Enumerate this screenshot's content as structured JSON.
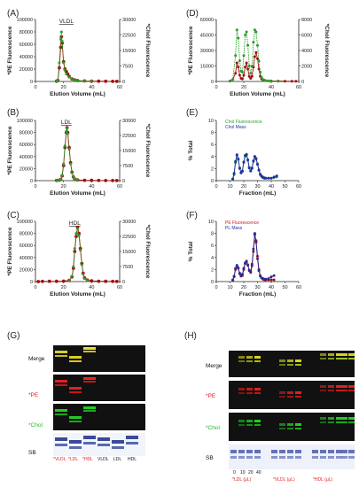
{
  "panel_labels": {
    "A": "(A)",
    "B": "(B)",
    "C": "(C)",
    "D": "(D)",
    "E": "(E)",
    "F": "(F)",
    "G": "(G)",
    "H": "(H)"
  },
  "colors": {
    "pe": "#a01010",
    "chol": "#2a9d2a",
    "chol_mass": "#1f2fa6",
    "pl_mass": "#2a2a9a",
    "pe_legend_text": "#c02020",
    "chol_legend_text": "#2a9d2a",
    "mass_legend_text": "#1f2fa6",
    "red_text": "#e02020",
    "green_text": "#22bb22"
  },
  "chart_data": [
    {
      "panel": "A",
      "type": "line",
      "title": "VLDL",
      "xlabel": "Elution Volume (mL)",
      "ylabel": "*PE Fluorescence",
      "y2label": "*Chol Fluorescence",
      "xlim": [
        0,
        60
      ],
      "xticks": [
        "0",
        "20",
        "40",
        "60"
      ],
      "ylim": [
        0,
        100000
      ],
      "yticks": [
        "0",
        "20000",
        "40000",
        "60000",
        "80000",
        "100000"
      ],
      "y2lim": [
        0,
        30000
      ],
      "y2ticks": [
        "0",
        "7500",
        "15000",
        "22500",
        "30000"
      ],
      "series": [
        {
          "name": "PE",
          "x": [
            15,
            16,
            17,
            18,
            18.5,
            19,
            20,
            21,
            22,
            23,
            24,
            26,
            28,
            30,
            35,
            40,
            45,
            50,
            55,
            58
          ],
          "values": [
            500,
            2000,
            22000,
            55000,
            72000,
            62000,
            32000,
            20000,
            16000,
            12000,
            8000,
            4000,
            2500,
            1500,
            800,
            500,
            400,
            300,
            200,
            200
          ]
        },
        {
          "name": "Chol",
          "x": [
            15,
            16,
            17,
            18,
            18.5,
            19,
            20,
            21,
            22,
            24,
            26,
            28,
            30,
            35,
            40
          ],
          "values": [
            500,
            2500,
            30000,
            68000,
            80000,
            65000,
            30000,
            18000,
            12000,
            7000,
            4000,
            2000,
            1200,
            600,
            300
          ]
        }
      ]
    },
    {
      "panel": "B",
      "type": "line",
      "title": "LDL",
      "xlabel": "Elution Volume (mL)",
      "ylabel": "*PE Fluorescence",
      "y2label": "*Chol Fluorescence",
      "xlim": [
        0,
        60
      ],
      "xticks": [
        "0",
        "20",
        "40",
        "60"
      ],
      "ylim": [
        0,
        100000
      ],
      "yticks": [
        "0",
        "20000",
        "40000",
        "60000",
        "80000",
        "100000"
      ],
      "y2lim": [
        0,
        30000
      ],
      "y2ticks": [
        "0",
        "7500",
        "15000",
        "22500",
        "30000"
      ],
      "series": [
        {
          "name": "PE",
          "x": [
            15,
            17,
            18,
            19,
            20,
            21,
            22,
            22.5,
            23,
            24,
            25,
            26,
            27,
            28,
            30,
            35,
            40,
            45,
            50,
            55,
            58
          ],
          "values": [
            300,
            800,
            2000,
            8000,
            25000,
            55000,
            80000,
            88000,
            80000,
            55000,
            30000,
            14000,
            6000,
            2500,
            1200,
            600,
            400,
            300,
            200,
            200,
            200
          ]
        },
        {
          "name": "Chol",
          "x": [
            15,
            17,
            18,
            19,
            20,
            21,
            22,
            22.5,
            23,
            24,
            25,
            26,
            27,
            28,
            30
          ],
          "values": [
            300,
            800,
            2000,
            9000,
            28000,
            58000,
            82000,
            87000,
            78000,
            52000,
            28000,
            13000,
            5500,
            2300,
            1000
          ]
        }
      ]
    },
    {
      "panel": "C",
      "type": "line",
      "title": "HDL",
      "xlabel": "Elution Volume (mL)",
      "ylabel": "*PE Fluorescence",
      "y2label": "*Chol Fluorescence",
      "xlim": [
        0,
        60
      ],
      "xticks": [
        "0",
        "20",
        "40",
        "60"
      ],
      "ylim": [
        0,
        100000
      ],
      "yticks": [
        "0",
        "20000",
        "40000",
        "60000",
        "80000",
        "100000"
      ],
      "y2lim": [
        0,
        30000
      ],
      "y2ticks": [
        "0",
        "7500",
        "15000",
        "22500",
        "30000"
      ],
      "series": [
        {
          "name": "PE",
          "x": [
            2,
            5,
            10,
            15,
            20,
            24,
            26,
            27,
            28,
            29,
            30,
            31,
            32,
            33,
            34,
            35,
            37,
            40,
            45,
            50,
            55,
            58
          ],
          "values": [
            0,
            300,
            400,
            500,
            800,
            2000,
            8000,
            22000,
            50000,
            75000,
            90000,
            80000,
            55000,
            30000,
            14000,
            6000,
            2500,
            1200,
            600,
            400,
            300,
            200
          ]
        },
        {
          "name": "Chol",
          "x": [
            24,
            26,
            27,
            28,
            29,
            30,
            31,
            32,
            33,
            34,
            35,
            37
          ],
          "values": [
            2000,
            9000,
            25000,
            55000,
            80000,
            88000,
            76000,
            52000,
            28000,
            12000,
            5000,
            2000
          ]
        }
      ]
    },
    {
      "panel": "D",
      "type": "line",
      "xlabel": "Elution Volume (mL)",
      "ylabel": "*PE Fluorescence",
      "y2label": "*Chol Fluorescence",
      "xlim": [
        0,
        60
      ],
      "xticks": [
        "0",
        "20",
        "40",
        "60"
      ],
      "ylim": [
        0,
        60000
      ],
      "yticks": [
        "0",
        "15000",
        "30000",
        "45000",
        "60000"
      ],
      "y2lim": [
        0,
        8000
      ],
      "y2ticks": [
        "0",
        "2000",
        "4000",
        "6000",
        "8000"
      ],
      "series": [
        {
          "name": "PE",
          "x": [
            10,
            12,
            14,
            15,
            16,
            17,
            18,
            19,
            20,
            21,
            22,
            23,
            24,
            25,
            26,
            27,
            28,
            29,
            30,
            31,
            32,
            33,
            34,
            35,
            36,
            38,
            40,
            45,
            50,
            55,
            58
          ],
          "values": [
            500,
            2000,
            8000,
            18000,
            14000,
            6000,
            3000,
            2500,
            6000,
            14000,
            18000,
            12000,
            5000,
            3000,
            5000,
            14000,
            24000,
            28000,
            22000,
            12000,
            5000,
            2500,
            1500,
            1000,
            800,
            600,
            500,
            400,
            300,
            200,
            200
          ]
        },
        {
          "name": "Chol",
          "x": [
            10,
            12,
            14,
            15,
            16,
            17,
            18,
            19,
            20,
            21,
            22,
            23,
            24,
            25,
            26,
            27,
            28,
            29,
            30,
            31,
            32,
            33,
            34,
            35,
            36,
            38,
            40,
            45
          ],
          "values": [
            300,
            2000,
            25000,
            50000,
            42000,
            20000,
            10000,
            9000,
            25000,
            45000,
            48000,
            35000,
            15000,
            8000,
            15000,
            38000,
            50000,
            48000,
            35000,
            20000,
            9000,
            4000,
            2000,
            1200,
            800,
            500,
            300,
            200
          ]
        }
      ]
    },
    {
      "panel": "E",
      "type": "line",
      "xlabel": "Fraction (mL)",
      "ylabel": "% Total",
      "xlim": [
        0,
        60
      ],
      "xticks": [
        "0",
        "10",
        "20",
        "30",
        "40",
        "50",
        "60"
      ],
      "ylim": [
        0,
        10
      ],
      "yticks": [
        "0",
        "2",
        "4",
        "6",
        "8",
        "10"
      ],
      "legend": [
        "Chol Fluorescence",
        "Chol Mass"
      ],
      "series": [
        {
          "name": "Chol Fluorescence",
          "x": [
            12,
            13,
            14,
            15,
            16,
            17,
            18,
            19,
            20,
            21,
            22,
            23,
            24,
            25,
            26,
            27,
            28,
            29,
            30,
            31,
            32,
            33,
            34,
            35,
            36,
            38,
            40,
            42,
            44
          ],
          "values": [
            0.2,
            1.0,
            3.0,
            4.2,
            3.5,
            2.0,
            1.3,
            1.5,
            3.0,
            4.2,
            4.4,
            3.5,
            2.2,
            1.6,
            2.0,
            3.2,
            4.0,
            3.7,
            2.8,
            1.8,
            1.1,
            0.8,
            0.6,
            0.5,
            0.4,
            0.4,
            0.4,
            0.5,
            0.6
          ]
        },
        {
          "name": "Chol Mass",
          "x": [
            12,
            13,
            14,
            15,
            16,
            17,
            18,
            19,
            20,
            21,
            22,
            23,
            24,
            25,
            26,
            27,
            28,
            29,
            30,
            31,
            32,
            33,
            34,
            35,
            36,
            38,
            40,
            42,
            44
          ],
          "values": [
            0.3,
            1.2,
            3.2,
            4.3,
            3.6,
            2.1,
            1.3,
            1.6,
            3.1,
            4.1,
            4.3,
            3.4,
            2.1,
            1.6,
            2.1,
            3.3,
            4.0,
            3.6,
            2.7,
            1.7,
            1.0,
            0.7,
            0.5,
            0.4,
            0.4,
            0.4,
            0.4,
            0.6,
            0.8
          ]
        }
      ]
    },
    {
      "panel": "F",
      "type": "line",
      "xlabel": "Fraction (mL)",
      "ylabel": "% Total",
      "xlim": [
        0,
        60
      ],
      "xticks": [
        "0",
        "10",
        "20",
        "30",
        "40",
        "50",
        "60"
      ],
      "ylim": [
        0,
        10
      ],
      "yticks": [
        "0",
        "2",
        "4",
        "6",
        "8",
        "10"
      ],
      "legend": [
        "PE Fluorescence",
        "PL Mass"
      ],
      "series": [
        {
          "name": "PE Fluorescence",
          "x": [
            12,
            13,
            14,
            15,
            16,
            17,
            18,
            19,
            20,
            21,
            22,
            23,
            24,
            25,
            26,
            27,
            28,
            29,
            30,
            31,
            32,
            33,
            34,
            35,
            36,
            38,
            40,
            42
          ],
          "values": [
            0.2,
            0.8,
            2.0,
            2.6,
            2.2,
            1.3,
            0.9,
            1.0,
            2.0,
            3.0,
            3.4,
            2.8,
            1.8,
            1.5,
            2.6,
            5.0,
            7.8,
            6.8,
            4.2,
            2.0,
            1.0,
            0.6,
            0.4,
            0.3,
            0.3,
            0.3,
            0.3,
            0.3
          ]
        },
        {
          "name": "PL Mass",
          "x": [
            12,
            13,
            14,
            15,
            16,
            17,
            18,
            19,
            20,
            21,
            22,
            23,
            24,
            25,
            26,
            27,
            28,
            29,
            30,
            31,
            32,
            33,
            34,
            35,
            36,
            38,
            40,
            42
          ],
          "values": [
            0.3,
            0.9,
            2.2,
            2.7,
            2.3,
            1.4,
            1.0,
            1.2,
            2.2,
            3.1,
            3.3,
            2.7,
            1.9,
            1.7,
            2.9,
            5.4,
            8.0,
            6.5,
            3.8,
            1.8,
            0.9,
            0.6,
            0.5,
            0.4,
            0.4,
            0.5,
            0.8,
            1.0
          ]
        }
      ]
    }
  ],
  "gel_G": {
    "rows": [
      "Merge",
      "*PE",
      "*Chol",
      "SB"
    ],
    "lanes": [
      "*VLDL",
      "*LDL",
      "*HDL",
      "VLDL",
      "LDL",
      "HDL"
    ]
  },
  "gel_H": {
    "rows": [
      "Merge",
      "*PE",
      "*Chol",
      "SB"
    ],
    "lane_numbers": [
      "0",
      "10",
      "20",
      "40"
    ],
    "groups": [
      "*LDL (μL)",
      "*VLDL (μL)",
      "*HDL (μL)"
    ],
    "extra": [
      "*VLDL",
      "*HDL"
    ]
  }
}
